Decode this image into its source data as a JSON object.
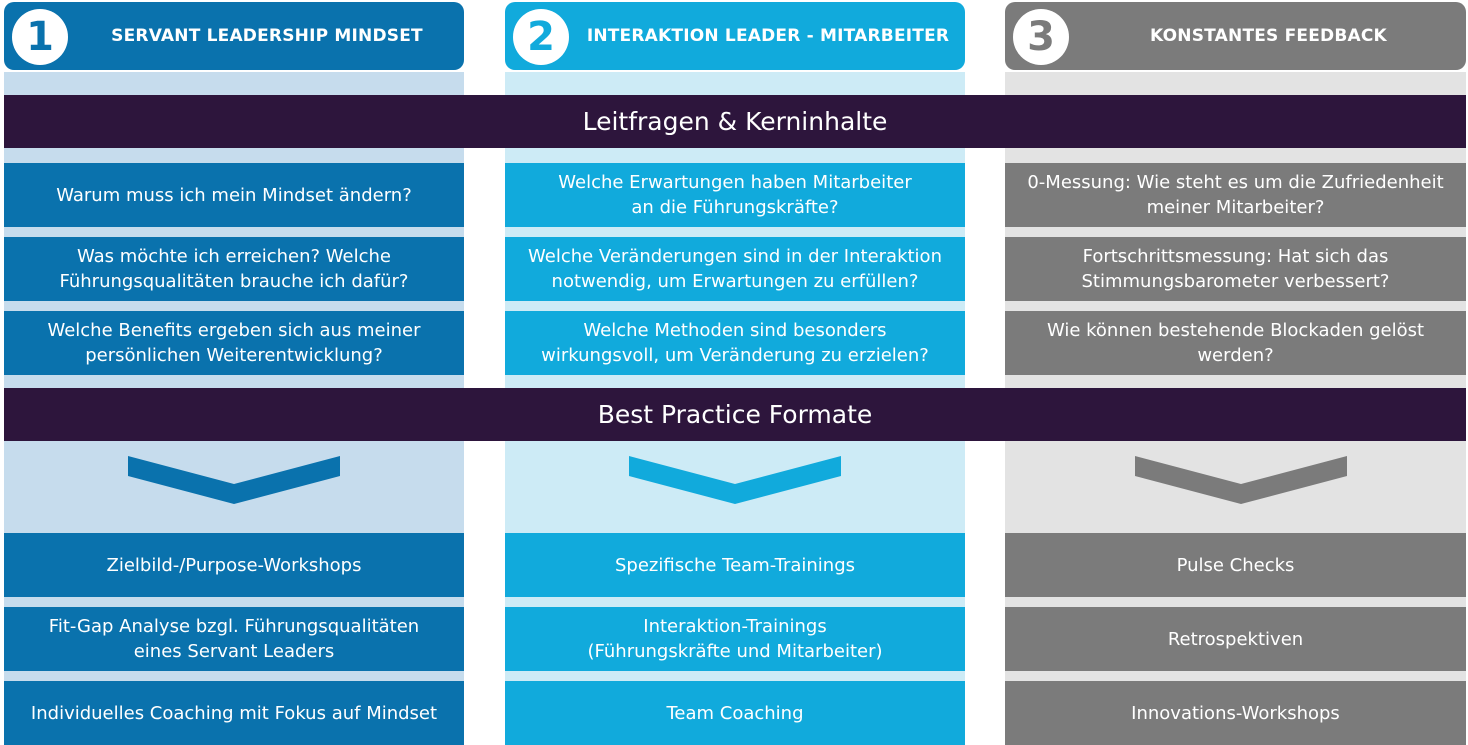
{
  "colors": {
    "col1": "#0a72ad",
    "col1_light": "#c6dced",
    "col2": "#11aadc",
    "col2_light": "#cdebf6",
    "col3": "#7b7b7b",
    "col3_light": "#e3e3e3",
    "band": "#2d153c"
  },
  "columns": [
    {
      "number": "1",
      "title": "SERVANT LEADERSHIP MINDSET",
      "questions": [
        [
          "Warum muss ich mein Mindset ändern?"
        ],
        [
          "Was möchte ich erreichen? Welche",
          "Führungsqualitäten brauche ich dafür?"
        ],
        [
          "Welche Benefits ergeben sich aus meiner",
          "persönlichen Weiterentwicklung?"
        ]
      ],
      "formats": [
        [
          "Zielbild-/Purpose-Workshops"
        ],
        [
          "Fit-Gap Analyse bzgl. Führungsqualitäten",
          "eines Servant Leaders"
        ],
        [
          "Individuelles Coaching mit Fokus auf Mindset"
        ]
      ]
    },
    {
      "number": "2",
      "title": "INTERAKTION LEADER - MITARBEITER",
      "questions": [
        [
          "Welche Erwartungen haben Mitarbeiter",
          "an die Führungskräfte?"
        ],
        [
          "Welche Veränderungen sind in der Interaktion",
          "notwendig, um Erwartungen zu erfüllen?"
        ],
        [
          "Welche Methoden sind besonders",
          "wirkungsvoll, um Veränderung zu erzielen?"
        ]
      ],
      "formats": [
        [
          "Spezifische Team-Trainings"
        ],
        [
          "Interaktion-Trainings",
          "(Führungskräfte und Mitarbeiter)"
        ],
        [
          "Team Coaching"
        ]
      ]
    },
    {
      "number": "3",
      "title": "KONSTANTES FEEDBACK",
      "questions": [
        [
          "0-Messung: Wie steht es um die Zufriedenheit",
          "meiner Mitarbeiter?"
        ],
        [
          "Fortschrittsmessung: Hat sich das",
          "Stimmungsbarometer verbessert?"
        ],
        [
          "Wie können bestehende Blockaden gelöst",
          "werden?"
        ]
      ],
      "formats": [
        [
          "Pulse Checks"
        ],
        [
          "Retrospektiven"
        ],
        [
          "Innovations-Workshops"
        ]
      ]
    }
  ],
  "bands": {
    "questions": "Leitfragen & Kerninhalte",
    "formats": "Best Practice Formate"
  }
}
